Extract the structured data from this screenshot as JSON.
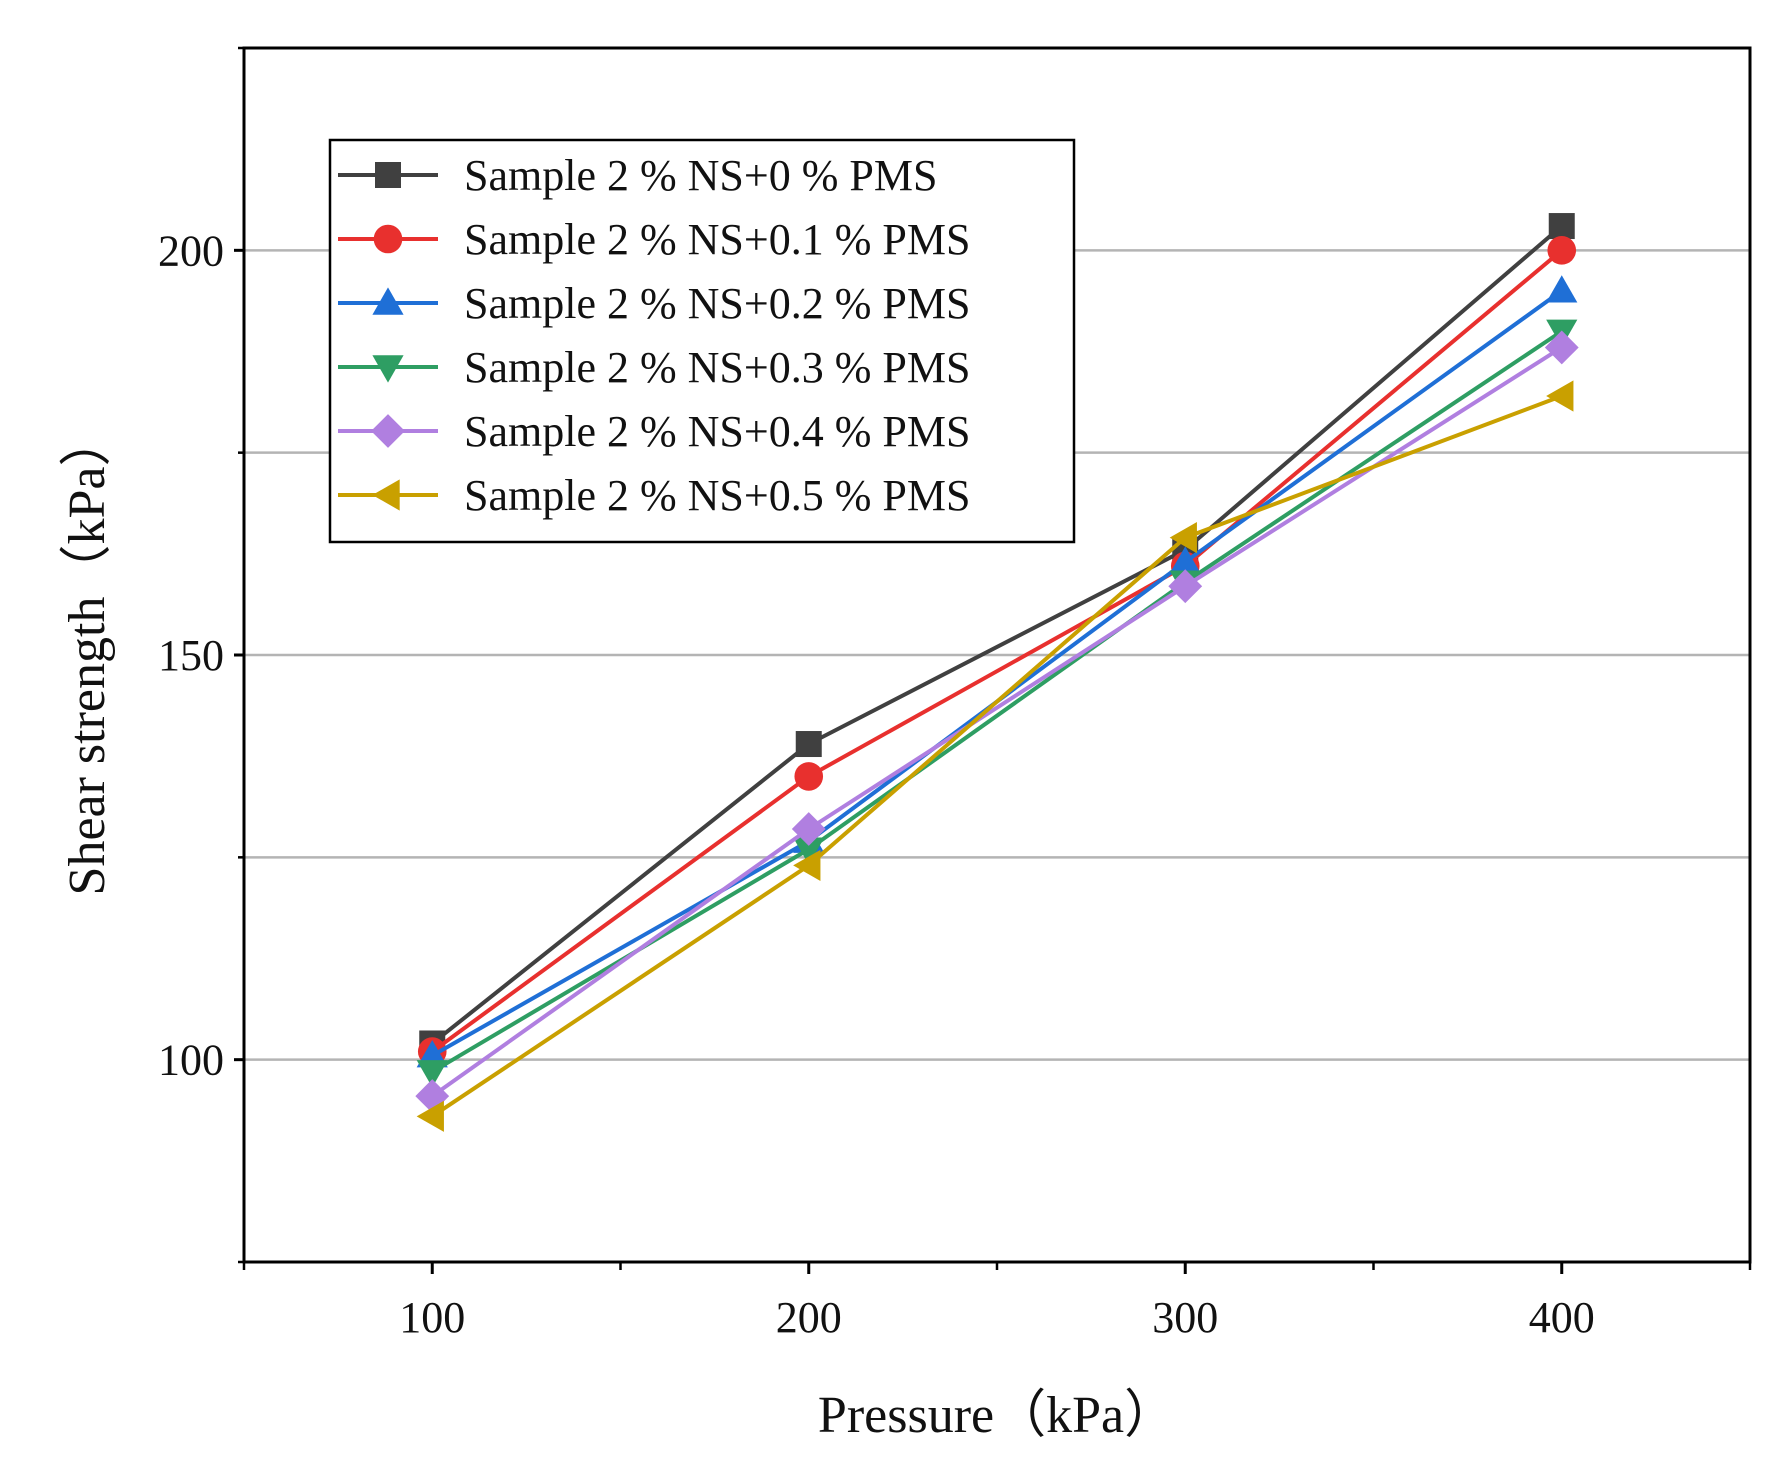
{
  "chart_data": {
    "type": "line",
    "title": "",
    "xlabel": "Pressure（kPa）",
    "ylabel": "Shear strength（kPa）",
    "x": [
      100,
      200,
      300,
      400
    ],
    "xlim": [
      50,
      450
    ],
    "ylim": [
      75,
      225
    ],
    "xticks": [
      100,
      200,
      300,
      400
    ],
    "xtick_labels": [
      "100",
      "200",
      "300",
      "400"
    ],
    "yticks": [
      100,
      150,
      200
    ],
    "ytick_labels": [
      "100",
      "150",
      "200"
    ],
    "ygrid": [
      100,
      125,
      150,
      175,
      200
    ],
    "grid": "horizontal",
    "legend_position": "top-left",
    "series": [
      {
        "name": "Sample 2 % NS+0 % PMS",
        "color": "#404040",
        "marker": "square",
        "values": [
          102,
          139,
          163,
          203
        ]
      },
      {
        "name": "Sample 2 % NS+0.1 % PMS",
        "color": "#e8302e",
        "marker": "circle",
        "values": [
          101,
          135,
          161,
          200
        ]
      },
      {
        "name": "Sample 2 % NS+0.2 % PMS",
        "color": "#1f6fd6",
        "marker": "triangle-up",
        "values": [
          100.5,
          127,
          161.5,
          195
        ]
      },
      {
        "name": "Sample 2 % NS+0.3 % PMS",
        "color": "#2e9e63",
        "marker": "triangle-down",
        "values": [
          98.5,
          126,
          159,
          190
        ]
      },
      {
        "name": "Sample 2 % NS+0.4 % PMS",
        "color": "#b07fe0",
        "marker": "diamond",
        "values": [
          95.5,
          128.5,
          158.5,
          188
        ]
      },
      {
        "name": "Sample 2 % NS+0.5 % PMS",
        "color": "#c9a000",
        "marker": "triangle-left",
        "values": [
          93,
          124,
          164.5,
          182
        ]
      }
    ]
  }
}
